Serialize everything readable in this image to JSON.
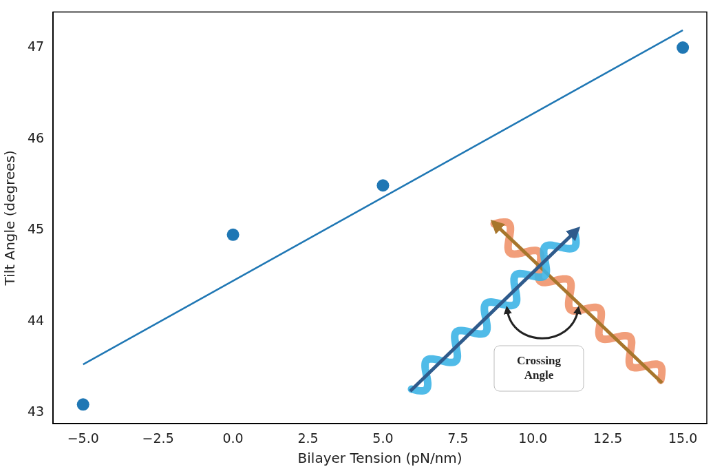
{
  "chart_data": {
    "type": "scatter",
    "x_label": "Bilayer Tension (pN/nm)",
    "y_label": "Tilt Angle (degrees)",
    "series": [
      {
        "type": "scatter",
        "color": "#1f77b4",
        "marker": "circle",
        "x": [
          -5,
          0,
          5,
          15
        ],
        "values": [
          43.09,
          44.95,
          45.49,
          47.0
        ]
      },
      {
        "type": "line",
        "color": "#1f77b4",
        "line_style": "solid",
        "x": [
          -5,
          15
        ],
        "values": [
          43.53,
          47.19
        ]
      }
    ],
    "xlim": [
      -6.0,
      15.8
    ],
    "xticks": [
      {
        "value": -5,
        "label": "−5.0"
      },
      {
        "value": -2.5,
        "label": "−2.5"
      },
      {
        "value": 0,
        "label": "0.0"
      },
      {
        "value": 2.5,
        "label": "2.5"
      },
      {
        "value": 5,
        "label": "5.0"
      },
      {
        "value": 7.5,
        "label": "7.5"
      },
      {
        "value": 10,
        "label": "10.0"
      },
      {
        "value": 12.5,
        "label": "12.5"
      },
      {
        "value": 15,
        "label": "15.0"
      }
    ],
    "ylim": [
      42.88,
      47.39
    ],
    "yticks": [
      43,
      44,
      45,
      46,
      47
    ],
    "grid": false,
    "annotations": [
      "Crossing Angle"
    ]
  }
}
